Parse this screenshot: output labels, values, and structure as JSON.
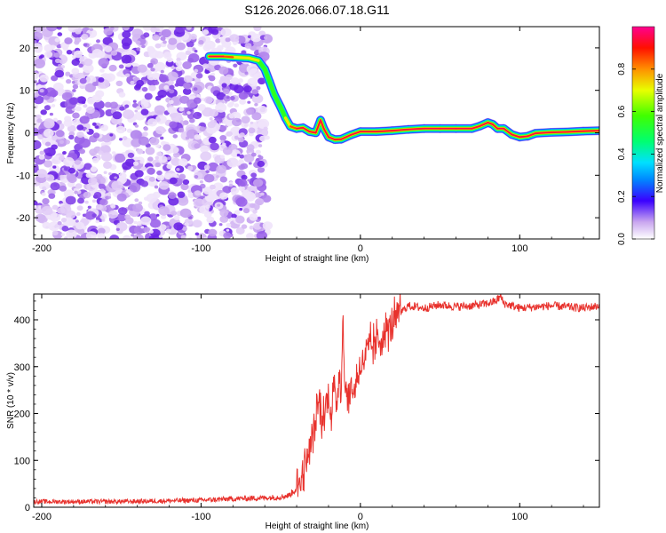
{
  "title": "S126.2026.066.07.18.G11",
  "chart_data": [
    {
      "type": "heatmap",
      "title": "S126.2026.066.07.18.G11",
      "xlabel": "Height of straight line (km)",
      "ylabel": "Frequency (Hz)",
      "xlim": [
        -205,
        150
      ],
      "ylim": [
        -25,
        25
      ],
      "xticks": [
        -200,
        -100,
        0,
        100
      ],
      "yticks": [
        -20,
        -10,
        0,
        10,
        20
      ],
      "colorbar": {
        "label": "Normalized spectral amplitude",
        "ticks": [
          0.0,
          0.2,
          0.4,
          0.6,
          0.8
        ],
        "range": [
          0,
          1
        ]
      },
      "noise_region_km": [
        -205,
        -57
      ],
      "ridge": {
        "x": [
          -95,
          -86,
          -80,
          -70,
          -64,
          -60,
          -57,
          -54,
          -50,
          -47,
          -44,
          -40,
          -36,
          -32,
          -28,
          -25,
          -23,
          -20,
          -16,
          -12,
          -6,
          0,
          10,
          20,
          30,
          40,
          50,
          60,
          70,
          75,
          80,
          83,
          86,
          90,
          95,
          100,
          105,
          110,
          120,
          130,
          140,
          150
        ],
        "y": [
          18,
          18,
          17.8,
          17.6,
          17,
          15,
          12,
          9,
          6,
          3.5,
          1.5,
          1,
          1.2,
          0.3,
          0,
          3,
          1,
          -1,
          -1.6,
          -1.5,
          -0.5,
          0.3,
          0.3,
          0.5,
          0.8,
          1,
          1,
          1,
          1,
          1.6,
          2.4,
          2,
          1,
          1,
          -0.4,
          -1,
          -0.8,
          -0.1,
          0.1,
          0.2,
          0.4,
          0.5
        ],
        "peak": [
          1.0,
          1.0,
          0.9,
          0.8,
          0.7,
          0.6,
          0.6,
          0.55,
          0.6,
          0.75,
          0.9,
          0.95,
          1.0,
          1.0,
          1.0,
          1.0,
          1.0,
          1.0,
          1.0,
          1.0,
          1.0,
          1.0,
          1.0,
          1.0,
          1.0,
          1.0,
          1.0,
          1.0,
          1.0,
          1.0,
          1.0,
          1.0,
          1.0,
          1.0,
          1.0,
          1.0,
          1.0,
          1.0,
          1.0,
          1.0,
          1.0,
          1.0
        ]
      }
    },
    {
      "type": "line",
      "xlabel": "Height of straight line (km)",
      "ylabel": "SNR (10 * v/v)",
      "xlim": [
        -205,
        150
      ],
      "ylim": [
        0,
        455
      ],
      "xticks": [
        -200,
        -100,
        0,
        100
      ],
      "yticks": [
        0,
        100,
        200,
        300,
        400
      ],
      "series": [
        {
          "name": "SNR",
          "color": "#e8322d",
          "x": [
            -205,
            -150,
            -100,
            -80,
            -60,
            -50,
            -45,
            -40,
            -36,
            -32,
            -30,
            -28,
            -26,
            -24,
            -22,
            -20,
            -18,
            -17,
            -15,
            -13,
            -12,
            -11,
            -10,
            -8,
            -6,
            -4,
            -2,
            0,
            3,
            6,
            10,
            15,
            20,
            25,
            30,
            40,
            50,
            60,
            70,
            80,
            85,
            88,
            90,
            100,
            120,
            140,
            150
          ],
          "y": [
            12,
            12,
            15,
            18,
            20,
            22,
            25,
            40,
            75,
            120,
            150,
            180,
            230,
            180,
            210,
            240,
            190,
            260,
            220,
            300,
            250,
            405,
            280,
            220,
            260,
            240,
            280,
            300,
            320,
            340,
            350,
            370,
            390,
            415,
            430,
            425,
            432,
            428,
            430,
            435,
            440,
            450,
            435,
            425,
            430,
            425,
            430
          ]
        }
      ]
    }
  ]
}
